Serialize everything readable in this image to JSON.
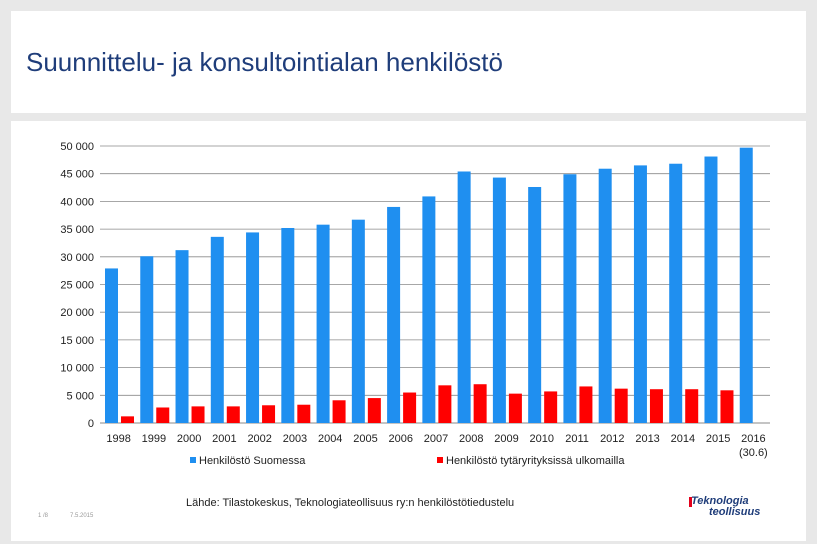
{
  "slide": {
    "title": "Suunnittelu- ja konsultointialan henkilöstö",
    "source": "Lähde: Tilastokeskus, Teknologiateollisuus ry:n henkilöstötiedustelu",
    "page_number": "1 /8",
    "date": "7.5.2015",
    "logo_line1": "Teknologia",
    "logo_line2": "teollisuus"
  },
  "chart_data": {
    "type": "bar",
    "categories": [
      "1998",
      "1999",
      "2000",
      "2001",
      "2002",
      "2003",
      "2004",
      "2005",
      "2006",
      "2007",
      "2008",
      "2009",
      "2010",
      "2011",
      "2012",
      "2013",
      "2014",
      "2015",
      "2016"
    ],
    "category_sublabels": {
      "2016": "(30.6)"
    },
    "series": [
      {
        "name": "Henkilöstö Suomessa",
        "color": "#1f8ff0",
        "values": [
          27900,
          30100,
          31200,
          33600,
          34400,
          35200,
          35800,
          36700,
          39000,
          40900,
          45400,
          44300,
          42600,
          44900,
          45900,
          46500,
          46800,
          48100,
          49700
        ]
      },
      {
        "name": "Henkilöstö tytäryrityksissä ulkomailla",
        "color": "#ff0000",
        "values": [
          1200,
          2800,
          3000,
          3000,
          3200,
          3300,
          4100,
          4500,
          5500,
          6800,
          7000,
          5300,
          5700,
          6600,
          6200,
          6100,
          6100,
          5900,
          null
        ]
      }
    ],
    "ylim": [
      0,
      50000
    ],
    "yticks": [
      0,
      5000,
      10000,
      15000,
      20000,
      25000,
      30000,
      35000,
      40000,
      45000,
      50000
    ],
    "ytick_labels": [
      "0",
      "5 000",
      "10 000",
      "15 000",
      "20 000",
      "25 000",
      "30 000",
      "35 000",
      "40 000",
      "45 000",
      "50 000"
    ],
    "grid": true,
    "legend_position": "bottom",
    "xlabel": "",
    "ylabel": ""
  }
}
